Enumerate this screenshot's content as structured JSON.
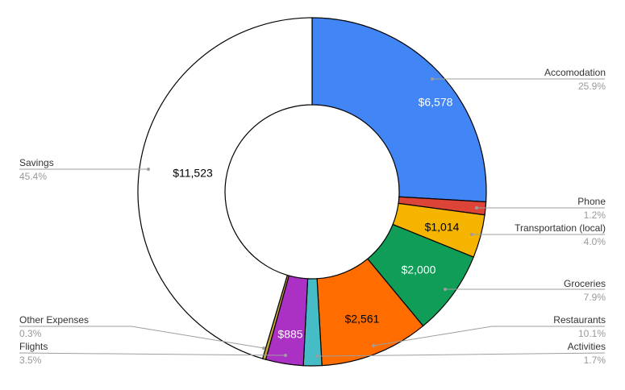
{
  "chart_data": {
    "type": "pie",
    "style": "donut",
    "currency": "$",
    "slices": [
      {
        "name": "Accomodation",
        "value": 6578,
        "value_label": "$6,578",
        "percent_label": "25.9%",
        "color": "#4285f4",
        "label_color": "#ffffff"
      },
      {
        "name": "Phone",
        "value": 305,
        "value_label": "",
        "percent_label": "1.2%",
        "color": "#db4437",
        "label_color": "#ffffff"
      },
      {
        "name": "Transportation (local)",
        "value": 1014,
        "value_label": "$1,014",
        "percent_label": "4.0%",
        "color": "#f4b400",
        "label_color": "#000000"
      },
      {
        "name": "Groceries",
        "value": 2000,
        "value_label": "$2,000",
        "percent_label": "7.9%",
        "color": "#0f9d58",
        "label_color": "#ffffff"
      },
      {
        "name": "Restaurants",
        "value": 2561,
        "value_label": "$2,561",
        "percent_label": "10.1%",
        "color": "#ff6d00",
        "label_color": "#000000"
      },
      {
        "name": "Activities",
        "value": 432,
        "value_label": "",
        "percent_label": "1.7%",
        "color": "#46bdc6",
        "label_color": "#ffffff"
      },
      {
        "name": "Flights",
        "value": 885,
        "value_label": "$885",
        "percent_label": "3.5%",
        "color": "#ab30c4",
        "label_color": "#ffffff"
      },
      {
        "name": "Other Expenses",
        "value": 76,
        "value_label": "",
        "percent_label": "0.3%",
        "color": "#c5a63a",
        "label_color": "#000000"
      },
      {
        "name": "Savings",
        "value": 11523,
        "value_label": "$11,523",
        "percent_label": "45.4%",
        "color": "#ffffff",
        "label_color": "#000000"
      }
    ],
    "legend": "pointer labels around the chart"
  }
}
